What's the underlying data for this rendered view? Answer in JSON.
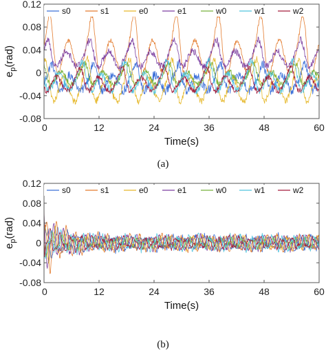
{
  "figure": {
    "panels": [
      {
        "caption": "(a)"
      },
      {
        "caption": "(b)"
      }
    ]
  },
  "chart_data": [
    {
      "type": "line",
      "title": "",
      "xlabel": "Time(s)",
      "ylabel": {
        "main": "e",
        "sub": "p",
        "unit": "(rad)"
      },
      "xlim": [
        0,
        60
      ],
      "ylim": [
        -0.08,
        0.12
      ],
      "xticks": [
        "0",
        "12",
        "24",
        "36",
        "48",
        "60"
      ],
      "yticks": [
        "-0.08",
        "-0.04",
        "0",
        "0.04",
        "0.08",
        "0.12"
      ],
      "grid": false,
      "legend": "top, horizontal",
      "caption": "(a)",
      "samples": 600,
      "series": [
        {
          "name": "s0",
          "color": "#3b6fd8",
          "pattern": "periodic",
          "offset": -0.012,
          "amp": 0.022,
          "period": 4.6,
          "phase": 0.0,
          "noise": 0.008
        },
        {
          "name": "s1",
          "color": "#e37b2d",
          "pattern": "periodic",
          "offset": 0.04,
          "amp": 0.048,
          "period": 4.6,
          "phase": 0.6,
          "noise": 0.004
        },
        {
          "name": "e0",
          "color": "#e6b82a",
          "pattern": "periodic",
          "offset": -0.02,
          "amp": 0.035,
          "period": 4.6,
          "phase": 1.9,
          "noise": 0.006
        },
        {
          "name": "e1",
          "color": "#7c3fa0",
          "pattern": "periodic",
          "offset": 0.03,
          "amp": 0.022,
          "period": 4.6,
          "phase": 1.2,
          "noise": 0.006
        },
        {
          "name": "w0",
          "color": "#76b13a",
          "pattern": "periodic",
          "offset": -0.005,
          "amp": 0.018,
          "period": 4.6,
          "phase": 2.8,
          "noise": 0.005
        },
        {
          "name": "w1",
          "color": "#4fc3de",
          "pattern": "periodic",
          "offset": -0.01,
          "amp": 0.025,
          "period": 4.6,
          "phase": 3.4,
          "noise": 0.007
        },
        {
          "name": "w2",
          "color": "#a31a3a",
          "pattern": "periodic",
          "offset": -0.015,
          "amp": 0.02,
          "period": 4.6,
          "phase": 4.1,
          "noise": 0.005
        }
      ]
    },
    {
      "type": "line",
      "title": "",
      "xlabel": "Time(s)",
      "ylabel": {
        "main": "e",
        "sub": "p",
        "unit": "(rad)"
      },
      "xlim": [
        0,
        60
      ],
      "ylim": [
        -0.08,
        0.12
      ],
      "xticks": [
        "0",
        "12",
        "24",
        "36",
        "48",
        "60"
      ],
      "yticks": [
        "-0.08",
        "-0.04",
        "0",
        "0.04",
        "0.08",
        "0.12"
      ],
      "grid": false,
      "legend": "top, horizontal",
      "caption": "(b)",
      "samples": 600,
      "series": [
        {
          "name": "s0",
          "color": "#3b6fd8",
          "pattern": "decaying",
          "offset": 0.0,
          "amp0": 0.045,
          "amp": 0.014,
          "period": 2.3,
          "phase": 0.0,
          "noise": 0.006
        },
        {
          "name": "s1",
          "color": "#e37b2d",
          "pattern": "decaying",
          "offset": 0.0,
          "amp0": 0.075,
          "amp": 0.016,
          "period": 2.3,
          "phase": 0.8,
          "noise": 0.004
        },
        {
          "name": "e0",
          "color": "#e6b82a",
          "pattern": "decaying",
          "offset": 0.0,
          "amp0": 0.045,
          "amp": 0.012,
          "period": 2.3,
          "phase": 1.7,
          "noise": 0.005
        },
        {
          "name": "e1",
          "color": "#7c3fa0",
          "pattern": "decaying",
          "offset": 0.0,
          "amp0": 0.055,
          "amp": 0.013,
          "period": 2.3,
          "phase": 2.4,
          "noise": 0.005
        },
        {
          "name": "w0",
          "color": "#76b13a",
          "pattern": "decaying",
          "offset": 0.0,
          "amp0": 0.025,
          "amp": 0.01,
          "period": 2.3,
          "phase": 3.1,
          "noise": 0.004
        },
        {
          "name": "w1",
          "color": "#4fc3de",
          "pattern": "decaying",
          "offset": 0.0,
          "amp0": 0.03,
          "amp": 0.014,
          "period": 2.3,
          "phase": 3.8,
          "noise": 0.006
        },
        {
          "name": "w2",
          "color": "#a31a3a",
          "pattern": "decaying",
          "offset": 0.0,
          "amp0": 0.035,
          "amp": 0.012,
          "period": 2.3,
          "phase": 4.6,
          "noise": 0.004
        }
      ]
    }
  ]
}
